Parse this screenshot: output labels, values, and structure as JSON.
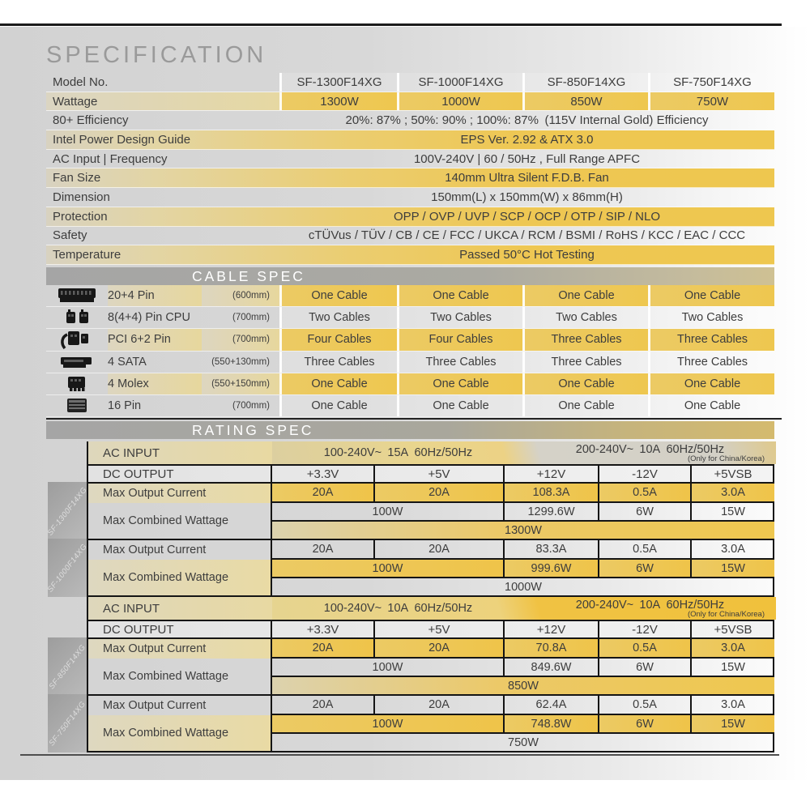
{
  "title": "SPECIFICATION",
  "colors": {
    "gold": "#eec74f",
    "pale_gold": "#e8d9a2",
    "panel_gray": "#d6d6d6",
    "bar_gray": "#a9a9a9",
    "text": "#3d3d3d"
  },
  "spec_table": {
    "rows": [
      {
        "label": "Model No.",
        "values": [
          "SF-1300F14XG",
          "SF-1000F14XG",
          "SF-850F14XG",
          "SF-750F14XG"
        ]
      },
      {
        "label": "Wattage",
        "values": [
          "1300W",
          "1000W",
          "850W",
          "750W"
        ]
      },
      {
        "label": "80+ Efficiency",
        "value": "20%: 87% ; 50%: 90% ; 100%: 87% (115V Internal Gold) Efficiency"
      },
      {
        "label": "Intel Power Design Guide",
        "value": "EPS Ver. 2.92 & ATX 3.0"
      },
      {
        "label": "AC Input | Frequency",
        "value": "100V-240V | 60 / 50Hz , Full Range APFC"
      },
      {
        "label": "Fan Size",
        "value": "140mm Ultra Silent F.D.B. Fan"
      },
      {
        "label": "Dimension",
        "value": "150mm(L) x 150mm(W) x 86mm(H)"
      },
      {
        "label": "Protection",
        "value": "OPP / OVP / UVP / SCP / OCP / OTP / SIP / NLO"
      },
      {
        "label": "Safety",
        "value": "cTÜVus / TÜV / CB / CE / FCC / UKCA / RCM / BSMI / RoHS / KCC / EAC / CCC"
      },
      {
        "label": "Temperature",
        "value": "Passed 50°C Hot Testing"
      }
    ]
  },
  "cable_spec": {
    "header": "CABLE SPEC",
    "rows": [
      {
        "icon": "atx-20-4-pin-icon",
        "name": "20+4 Pin",
        "length": "(600mm)",
        "values": [
          "One Cable",
          "One Cable",
          "One Cable",
          "One Cable"
        ]
      },
      {
        "icon": "cpu-8-pin-icon",
        "name": "8(4+4) Pin CPU",
        "length": "(700mm)",
        "values": [
          "Two Cables",
          "Two Cables",
          "Two Cables",
          "Two Cables"
        ]
      },
      {
        "icon": "pci-6-2-pin-icon",
        "name": "PCI 6+2 Pin",
        "length": "(700mm)",
        "values": [
          "Four Cables",
          "Four Cables",
          "Three Cables",
          "Three Cables"
        ]
      },
      {
        "icon": "sata-icon",
        "name": "4 SATA",
        "length": "(550+130mm)",
        "values": [
          "Three Cables",
          "Three Cables",
          "Three Cables",
          "Three Cables"
        ]
      },
      {
        "icon": "molex-icon",
        "name": "4 Molex",
        "length": "(550+150mm)",
        "values": [
          "One Cable",
          "One Cable",
          "One Cable",
          "One Cable"
        ]
      },
      {
        "icon": "pcie-16-pin-icon",
        "name": "16 Pin",
        "length": "(700mm)",
        "values": [
          "One Cable",
          "One Cable",
          "One Cable",
          "One Cable"
        ]
      }
    ]
  },
  "rating_spec": {
    "header": "RATING SPEC",
    "ac_input_label": "AC INPUT",
    "dc_output_label": "DC OUTPUT",
    "max_current_label": "Max Output Current",
    "max_wattage_label": "Max Combined Wattage",
    "dc_columns": [
      "+3.3V",
      "+5V",
      "+12V",
      "-12V",
      "+5VSB"
    ],
    "ac_rows": [
      {
        "left": "100-240V~ 15A 60Hz/50Hz",
        "right": "200-240V~ 10A 60Hz/50Hz",
        "right_note": "(Only for China/Korea)"
      },
      {
        "left": "100-240V~ 10A 60Hz/50Hz",
        "right": "200-240V~ 10A 60Hz/50Hz",
        "right_note": "(Only for China/Korea)"
      }
    ],
    "blocks": [
      {
        "model": "SF-1300F14XG",
        "currents": [
          "20A",
          "20A",
          "108.3A",
          "0.5A",
          "3.0A"
        ],
        "wattages": [
          "100W",
          "1299.6W",
          "6W",
          "15W"
        ],
        "total": "1300W"
      },
      {
        "model": "SF-1000F14XG",
        "currents": [
          "20A",
          "20A",
          "83.3A",
          "0.5A",
          "3.0A"
        ],
        "wattages": [
          "100W",
          "999.6W",
          "6W",
          "15W"
        ],
        "total": "1000W"
      },
      {
        "model": "SF-850F14XG",
        "currents": [
          "20A",
          "20A",
          "70.8A",
          "0.5A",
          "3.0A"
        ],
        "wattages": [
          "100W",
          "849.6W",
          "6W",
          "15W"
        ],
        "total": "850W"
      },
      {
        "model": "SF-750F14XG",
        "currents": [
          "20A",
          "20A",
          "62.4A",
          "0.5A",
          "3.0A"
        ],
        "wattages": [
          "100W",
          "748.8W",
          "6W",
          "15W"
        ],
        "total": "750W"
      }
    ]
  }
}
